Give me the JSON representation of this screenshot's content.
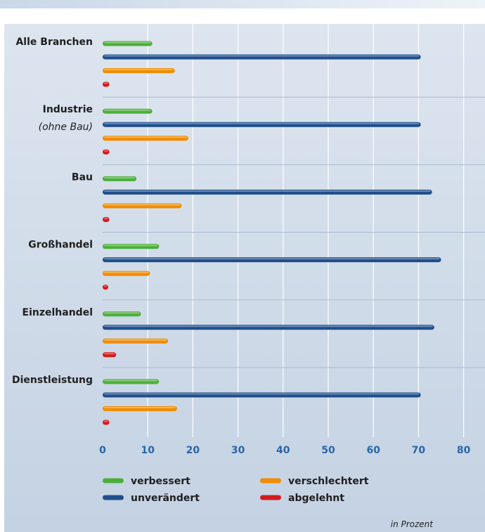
{
  "chart_data": {
    "type": "bar",
    "orientation": "horizontal",
    "categories": [
      "Alle Branchen",
      "Industrie",
      "Bau",
      "Großhandel",
      "Einzelhandel",
      "Dienstleistung"
    ],
    "category_sublabels": [
      "",
      "(ohne Bau)",
      "",
      "",
      "",
      ""
    ],
    "series": [
      {
        "name": "verbessert",
        "color": "#4caf3a",
        "values": [
          11,
          11,
          7.5,
          12.5,
          8.5,
          12.5
        ]
      },
      {
        "name": "unverändert",
        "color": "#1f4e8c",
        "values": [
          70.5,
          70.5,
          73,
          75,
          73.5,
          70.5
        ]
      },
      {
        "name": "verschlechtert",
        "color": "#f08c00",
        "values": [
          16,
          19,
          17.5,
          10.5,
          14.5,
          16.5
        ]
      },
      {
        "name": "abgelehnt",
        "color": "#d21c1c",
        "values": [
          1.5,
          1.5,
          1.5,
          1,
          3,
          1.5
        ]
      }
    ],
    "xlim": [
      0,
      84
    ],
    "xticks": [
      0,
      10,
      20,
      30,
      40,
      50,
      60,
      70,
      80
    ],
    "grid": true,
    "legend_position": "bottom",
    "unit_note": "in Prozent"
  }
}
